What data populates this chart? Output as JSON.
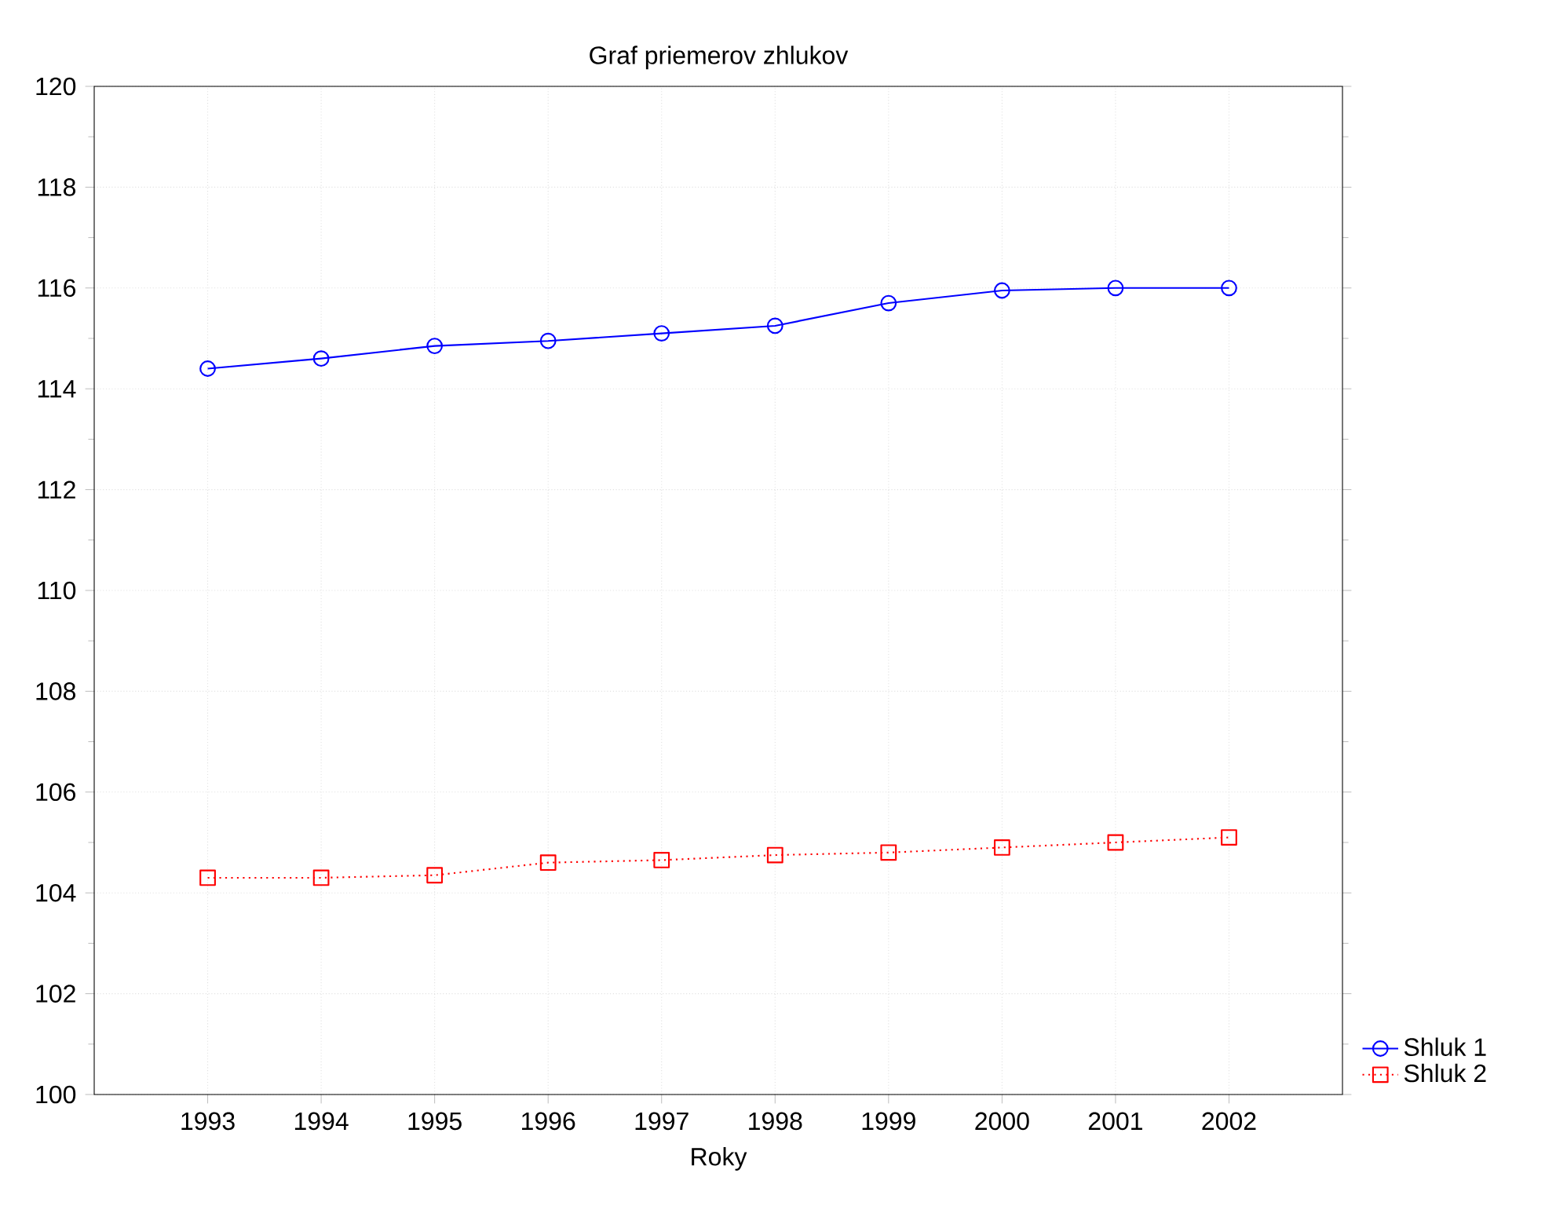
{
  "chart_data": {
    "type": "line",
    "title": "Graf priemerov zhlukov",
    "xlabel": "Roky",
    "categories": [
      "1993",
      "1994",
      "1995",
      "1996",
      "1997",
      "1998",
      "1999",
      "2000",
      "2001",
      "2002"
    ],
    "series": [
      {
        "name": "Shluk  1",
        "color": "#0000ff",
        "marker": "circle",
        "line_style": "solid",
        "values": [
          114.4,
          114.6,
          114.85,
          114.95,
          115.1,
          115.25,
          115.7,
          115.95,
          116.0,
          116.0
        ]
      },
      {
        "name": "Shluk  2",
        "color": "#ff0000",
        "marker": "square",
        "line_style": "dotted",
        "values": [
          104.3,
          104.3,
          104.35,
          104.6,
          104.65,
          104.75,
          104.8,
          104.9,
          105.0,
          105.1
        ]
      }
    ],
    "ylim": [
      100,
      120
    ],
    "yticks": [
      100,
      102,
      104,
      106,
      108,
      110,
      112,
      114,
      116,
      118,
      120
    ],
    "grid": true,
    "legend": "bottom right"
  }
}
